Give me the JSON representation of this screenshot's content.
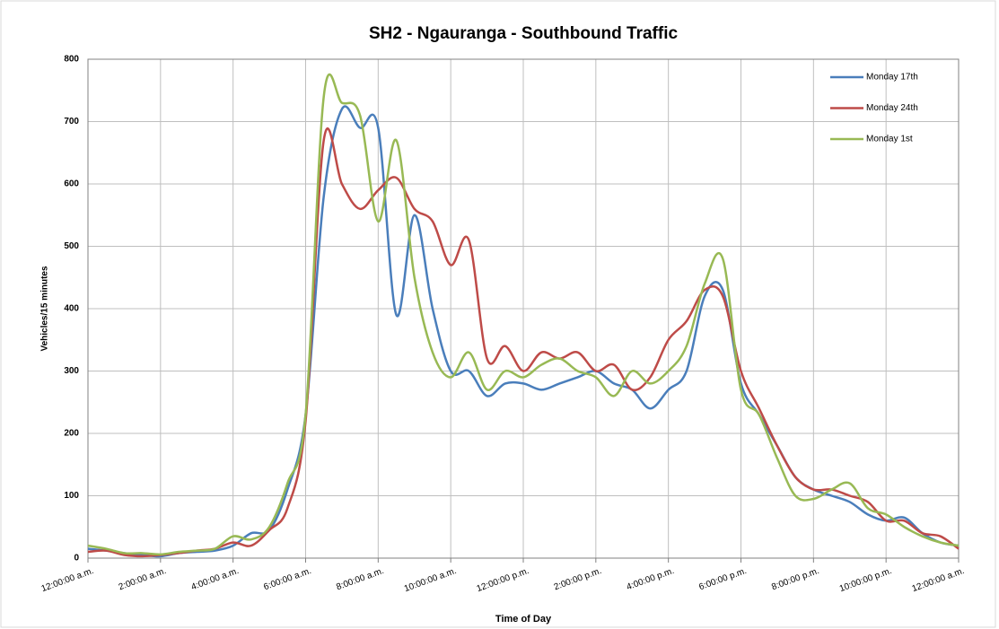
{
  "chart_data": {
    "type": "line",
    "title": "SH2 - Ngauranga - Southbound Traffic",
    "x_label": "Time of Day",
    "y_label": "Vehicles/15 minutes",
    "x": [
      0,
      0.5,
      1,
      1.5,
      2,
      2.5,
      3,
      3.5,
      4,
      4.5,
      5,
      5.5,
      6,
      6.5,
      7,
      7.5,
      8,
      8.5,
      9,
      9.5,
      10,
      10.5,
      11,
      11.5,
      12,
      12.5,
      13,
      13.5,
      14,
      14.5,
      15,
      15.5,
      16,
      16.5,
      17,
      17.5,
      18,
      18.5,
      19,
      19.5,
      20,
      20.5,
      21,
      21.5,
      22,
      22.5,
      23,
      23.5,
      24
    ],
    "series": [
      {
        "name": "Monday 17th",
        "color": "#4a7ebb",
        "values": [
          15,
          12,
          8,
          5,
          3,
          8,
          10,
          12,
          20,
          40,
          45,
          110,
          230,
          580,
          720,
          690,
          690,
          390,
          550,
          400,
          300,
          300,
          260,
          280,
          280,
          270,
          280,
          290,
          300,
          280,
          270,
          240,
          270,
          300,
          420,
          430,
          280,
          230,
          180,
          130,
          110,
          100,
          90,
          70,
          60,
          65,
          40,
          25,
          20
        ]
      },
      {
        "name": "Monday 24th",
        "color": "#be4b48",
        "values": [
          10,
          12,
          5,
          3,
          5,
          8,
          12,
          15,
          25,
          20,
          45,
          80,
          220,
          670,
          600,
          560,
          590,
          610,
          560,
          540,
          470,
          510,
          320,
          340,
          300,
          330,
          320,
          330,
          300,
          310,
          270,
          290,
          350,
          380,
          430,
          420,
          300,
          240,
          180,
          130,
          110,
          110,
          100,
          90,
          60,
          60,
          40,
          35,
          15
        ]
      },
      {
        "name": "Monday 1st",
        "color": "#98b954",
        "values": [
          20,
          15,
          8,
          8,
          6,
          10,
          12,
          15,
          35,
          30,
          50,
          120,
          230,
          740,
          730,
          710,
          540,
          670,
          450,
          330,
          290,
          330,
          270,
          300,
          290,
          310,
          320,
          300,
          290,
          260,
          300,
          280,
          300,
          340,
          440,
          480,
          270,
          230,
          160,
          100,
          95,
          110,
          120,
          80,
          70,
          50,
          35,
          25,
          20
        ]
      }
    ],
    "xlim": [
      0,
      24
    ],
    "xticks": [
      {
        "value": 0,
        "label": "12:00:00 a.m."
      },
      {
        "value": 2,
        "label": "2:00:00 a.m."
      },
      {
        "value": 4,
        "label": "4:00:00 a.m."
      },
      {
        "value": 6,
        "label": "6:00:00 a.m."
      },
      {
        "value": 8,
        "label": "8:00:00 a.m."
      },
      {
        "value": 10,
        "label": "10:00:00 a.m."
      },
      {
        "value": 12,
        "label": "12:00:00 p.m."
      },
      {
        "value": 14,
        "label": "2:00:00 p.m."
      },
      {
        "value": 16,
        "label": "4:00:00 p.m."
      },
      {
        "value": 18,
        "label": "6:00:00 p.m."
      },
      {
        "value": 20,
        "label": "8:00:00 p.m."
      },
      {
        "value": 22,
        "label": "10:00:00 p.m."
      },
      {
        "value": 24,
        "label": "12:00:00 a.m."
      }
    ],
    "ylim": [
      0,
      800
    ],
    "yticks": [
      0,
      100,
      200,
      300,
      400,
      500,
      600,
      700,
      800
    ],
    "grid": true,
    "legend": "top-right"
  }
}
